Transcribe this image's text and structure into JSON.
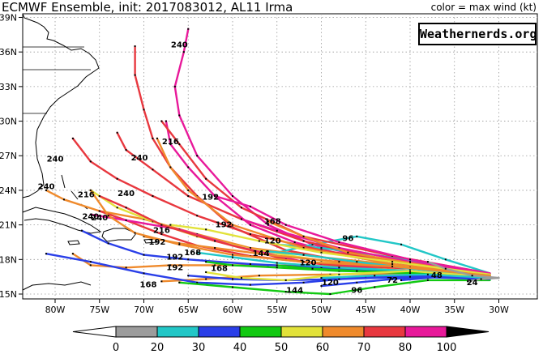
{
  "title": "ECMWF Ensemble, init: 2017083012, AL11 Irma",
  "legend_label": "color = max wind (kt)",
  "brand": "Weathernerds.org",
  "x_ticks": [
    {
      "label": "80W",
      "lon": -80
    },
    {
      "label": "75W",
      "lon": -75
    },
    {
      "label": "70W",
      "lon": -70
    },
    {
      "label": "65W",
      "lon": -65
    },
    {
      "label": "60W",
      "lon": -60
    },
    {
      "label": "55W",
      "lon": -55
    },
    {
      "label": "50W",
      "lon": -50
    },
    {
      "label": "45W",
      "lon": -45
    },
    {
      "label": "40W",
      "lon": -40
    },
    {
      "label": "35W",
      "lon": -35
    },
    {
      "label": "30W",
      "lon": -30
    }
  ],
  "y_ticks": [
    {
      "label": "15N",
      "lat": 15
    },
    {
      "label": "18N",
      "lat": 18
    },
    {
      "label": "21N",
      "lat": 21
    },
    {
      "label": "24N",
      "lat": 24
    },
    {
      "label": "27N",
      "lat": 27
    },
    {
      "label": "30N",
      "lat": 30
    },
    {
      "label": "33N",
      "lat": 33
    },
    {
      "label": "36N",
      "lat": 36
    },
    {
      "label": "39N",
      "lat": 39
    }
  ],
  "colorbar": {
    "labels": [
      "0",
      "20",
      "30",
      "40",
      "50",
      "60",
      "70",
      "80",
      "100"
    ],
    "colors": [
      "#9c9c9c",
      "#22c7c7",
      "#2a3fe8",
      "#12c912",
      "#e2e23a",
      "#ef8a2c",
      "#e8383f",
      "#e8199a"
    ]
  },
  "tracks": [
    {
      "color": "#e8199a",
      "points": [
        [
          -31,
          16.5
        ],
        [
          -36,
          17
        ],
        [
          -42,
          17.6
        ],
        [
          -48,
          18.5
        ],
        [
          -53,
          19.5
        ],
        [
          -58,
          21
        ],
        [
          -62,
          23.5
        ],
        [
          -65,
          26
        ],
        [
          -67,
          28
        ],
        [
          -67.5,
          30
        ]
      ],
      "label": "",
      "label_at": null
    },
    {
      "color": "#e8199a",
      "points": [
        [
          -31,
          16.6
        ],
        [
          -38,
          17.3
        ],
        [
          -45,
          18.2
        ],
        [
          -51,
          19.3
        ],
        [
          -56,
          21
        ],
        [
          -60,
          23.5
        ],
        [
          -64,
          27
        ],
        [
          -66,
          30.5
        ],
        [
          -66.5,
          33
        ],
        [
          -65.5,
          36
        ],
        [
          -65,
          38
        ]
      ],
      "label": "240",
      "label_at": [
        -66,
        36.6
      ]
    },
    {
      "color": "#e8383f",
      "points": [
        [
          -31,
          16.7
        ],
        [
          -39,
          17.2
        ],
        [
          -47,
          17.8
        ],
        [
          -54,
          18.8
        ],
        [
          -60,
          20.8
        ],
        [
          -64,
          23.5
        ],
        [
          -67,
          26
        ],
        [
          -69,
          28.5
        ],
        [
          -70,
          31
        ],
        [
          -71,
          34
        ],
        [
          -71,
          36.5
        ]
      ],
      "label": "",
      "label_at": null
    },
    {
      "color": "#ef8a2c",
      "points": [
        [
          -31,
          16.4
        ],
        [
          -40,
          17
        ],
        [
          -48,
          17.4
        ],
        [
          -56,
          17.5
        ],
        [
          -62,
          17.5
        ],
        [
          -67,
          17.5
        ],
        [
          -72,
          17.3
        ],
        [
          -76,
          17.5
        ],
        [
          -78,
          18.5
        ]
      ],
      "label": "",
      "label_at": null
    },
    {
      "color": "#ef8a2c",
      "points": [
        [
          -31,
          16.5
        ],
        [
          -40,
          16.8
        ],
        [
          -49,
          16.7
        ],
        [
          -57,
          16.6
        ],
        [
          -63,
          16.3
        ],
        [
          -68,
          16.1
        ]
      ],
      "label": "168",
      "label_at": [
        -69.5,
        15.8
      ]
    },
    {
      "color": "#2a3fe8",
      "points": [
        [
          -31,
          16.3
        ],
        [
          -38,
          16.6
        ],
        [
          -45,
          16.5
        ],
        [
          -52,
          16
        ],
        [
          -58,
          15.8
        ],
        [
          -64,
          16
        ],
        [
          -70,
          16.8
        ],
        [
          -76,
          17.8
        ],
        [
          -81,
          18.5
        ]
      ],
      "label": "",
      "label_at": null
    },
    {
      "color": "#12c912",
      "points": [
        [
          -31,
          16.2
        ],
        [
          -38,
          16.2
        ],
        [
          -44,
          15.6
        ],
        [
          -49,
          15
        ],
        [
          -54,
          15.2
        ],
        [
          -60,
          15.6
        ],
        [
          -66,
          16
        ]
      ],
      "label": "144",
      "label_at": [
        -53,
        15.3
      ]
    },
    {
      "color": "#22c7c7",
      "points": [
        [
          -31,
          16.8
        ],
        [
          -36,
          18
        ],
        [
          -41,
          19.3
        ],
        [
          -46,
          20
        ],
        [
          -51,
          19.3
        ],
        [
          -55,
          18.6
        ]
      ],
      "label": "96",
      "label_at": [
        -47,
        19.8
      ]
    },
    {
      "color": "#22c7c7",
      "points": [
        [
          -31,
          16.7
        ],
        [
          -37,
          17.6
        ],
        [
          -44,
          18.4
        ],
        [
          -50,
          19
        ],
        [
          -55,
          19.3
        ]
      ],
      "label": "120",
      "label_at": [
        -55.5,
        19.6
      ]
    },
    {
      "color": "#2a3fe8",
      "points": [
        [
          -31,
          16.4
        ],
        [
          -37,
          16.6
        ],
        [
          -42,
          16.3
        ],
        [
          -46,
          16
        ],
        [
          -50,
          15.7
        ]
      ],
      "label": "96",
      "label_at": [
        -46,
        15.3
      ]
    },
    {
      "color": "#2a3fe8",
      "points": [
        [
          -31,
          16.5
        ],
        [
          -35,
          16.6
        ],
        [
          -38,
          16.4
        ],
        [
          -41,
          16.2
        ]
      ],
      "label": "72",
      "label_at": [
        -42,
        16.2
      ]
    },
    {
      "color": "#ef8a2c",
      "points": [
        [
          -31,
          16.6
        ],
        [
          -40,
          17.4
        ],
        [
          -50,
          18.2
        ],
        [
          -58,
          19
        ],
        [
          -64,
          20.2
        ],
        [
          -70,
          21.5
        ],
        [
          -75,
          22.2
        ],
        [
          -79,
          23.2
        ],
        [
          -81,
          24
        ]
      ],
      "label": "240",
      "label_at": [
        -81,
        24.3
      ]
    },
    {
      "color": "#e8383f",
      "points": [
        [
          -31,
          16.7
        ],
        [
          -40,
          17.6
        ],
        [
          -50,
          18.8
        ],
        [
          -58,
          20.2
        ],
        [
          -64,
          21.8
        ],
        [
          -69,
          23.5
        ],
        [
          -73,
          25
        ],
        [
          -76,
          26.5
        ],
        [
          -78,
          28.5
        ]
      ],
      "label": "240",
      "label_at": [
        -80,
        26.7
      ]
    },
    {
      "color": "#e8383f",
      "points": [
        [
          -31,
          16.6
        ],
        [
          -42,
          17.8
        ],
        [
          -52,
          19.6
        ],
        [
          -59,
          21.5
        ],
        [
          -65,
          23.5
        ],
        [
          -69,
          25.8
        ],
        [
          -72,
          27.5
        ],
        [
          -73,
          29
        ]
      ],
      "label": "240",
      "label_at": [
        -70.5,
        26.8
      ]
    },
    {
      "color": "#ef8a2c",
      "points": [
        [
          -31,
          16.6
        ],
        [
          -42,
          17.6
        ],
        [
          -52,
          19
        ],
        [
          -60,
          21
        ],
        [
          -65,
          24
        ],
        [
          -67,
          26
        ],
        [
          -68.5,
          28.5
        ]
      ],
      "label": "216",
      "label_at": [
        -67,
        28.2
      ]
    },
    {
      "color": "#e8383f",
      "points": [
        [
          -31,
          16.8
        ],
        [
          -42,
          18.3
        ],
        [
          -52,
          20
        ],
        [
          -59,
          22.5
        ],
        [
          -63,
          25
        ],
        [
          -66,
          28
        ],
        [
          -68,
          30
        ]
      ],
      "label": "",
      "label_at": null
    },
    {
      "color": "#e8199a",
      "points": [
        [
          -31,
          16.8
        ],
        [
          -40,
          18
        ],
        [
          -48,
          19.5
        ],
        [
          -54,
          21
        ],
        [
          -58,
          22.6
        ],
        [
          -62,
          23.5
        ]
      ],
      "label": "192",
      "label_at": [
        -62.5,
        23.4
      ]
    },
    {
      "color": "#e8199a",
      "points": [
        [
          -31,
          16.7
        ],
        [
          -40,
          17.8
        ],
        [
          -48,
          19
        ],
        [
          -55,
          20.5
        ],
        [
          -59,
          21.5
        ]
      ],
      "label": "192",
      "label_at": [
        -61,
        21
      ]
    },
    {
      "color": "#ef8a2c",
      "points": [
        [
          -31,
          16.6
        ],
        [
          -40,
          17.7
        ],
        [
          -47,
          18.6
        ],
        [
          -52,
          20
        ],
        [
          -56,
          21.3
        ]
      ],
      "label": "168",
      "label_at": [
        -55.5,
        21.3
      ]
    },
    {
      "color": "#e2e23a",
      "points": [
        [
          -31,
          16.5
        ],
        [
          -40,
          17.3
        ],
        [
          -50,
          17.9
        ],
        [
          -58,
          18.9
        ],
        [
          -64,
          20
        ],
        [
          -69,
          21.3
        ],
        [
          -73,
          22.5
        ],
        [
          -76,
          24
        ]
      ],
      "label": "216",
      "label_at": [
        -76.5,
        23.6
      ]
    },
    {
      "color": "#e8383f",
      "points": [
        [
          -31,
          16.6
        ],
        [
          -40,
          17.2
        ],
        [
          -50,
          17.6
        ],
        [
          -58,
          18.3
        ],
        [
          -64,
          19.2
        ],
        [
          -68,
          20.2
        ],
        [
          -72,
          21.4
        ],
        [
          -75,
          22.2
        ]
      ],
      "label": "240",
      "label_at": [
        -76,
        21.7
      ]
    },
    {
      "color": "#e8199a",
      "points": [
        [
          -31,
          16.5
        ],
        [
          -42,
          17
        ],
        [
          -52,
          17.8
        ],
        [
          -60,
          19.2
        ],
        [
          -66,
          20.6
        ],
        [
          -72,
          21.4
        ],
        [
          -76,
          21.9
        ]
      ],
      "label": "240",
      "label_at": [
        -75,
        21.6
      ]
    },
    {
      "color": "#e8383f",
      "points": [
        [
          -31,
          16.6
        ],
        [
          -44,
          17.1
        ],
        [
          -54,
          18
        ],
        [
          -62,
          19.6
        ],
        [
          -68,
          21
        ],
        [
          -72,
          22.5
        ],
        [
          -75,
          23.5
        ]
      ],
      "label": "240",
      "label_at": [
        -72,
        23.7
      ]
    },
    {
      "color": "#2a3fe8",
      "points": [
        [
          -31,
          16.4
        ],
        [
          -40,
          16.9
        ],
        [
          -50,
          17.3
        ],
        [
          -58,
          17.6
        ],
        [
          -65,
          18
        ],
        [
          -70,
          18.4
        ],
        [
          -74,
          19.4
        ],
        [
          -77,
          20.5
        ]
      ],
      "label": "",
      "label_at": null
    },
    {
      "color": "#22c7c7",
      "points": [
        [
          -31,
          16.5
        ],
        [
          -40,
          17
        ],
        [
          -48,
          17.3
        ],
        [
          -55,
          17.7
        ],
        [
          -60,
          18.2
        ],
        [
          -64,
          18.6
        ]
      ],
      "label": "168",
      "label_at": [
        -64.5,
        18.6
      ]
    },
    {
      "color": "#12c912",
      "points": [
        [
          -31,
          16.4
        ],
        [
          -40,
          16.9
        ],
        [
          -48,
          17
        ],
        [
          -55,
          17.3
        ],
        [
          -60,
          17.5
        ],
        [
          -63,
          17.8
        ]
      ],
      "label": "192",
      "label_at": [
        -66.5,
        18.2
      ]
    },
    {
      "color": "#ef8a2c",
      "points": [
        [
          -31,
          16.6
        ],
        [
          -40,
          17.3
        ],
        [
          -48,
          17.8
        ],
        [
          -56,
          18.4
        ],
        [
          -62,
          19
        ],
        [
          -66,
          19.4
        ],
        [
          -70,
          20
        ]
      ],
      "label": "192",
      "label_at": [
        -68.5,
        19.5
      ]
    },
    {
      "color": "#e2e23a",
      "points": [
        [
          -31,
          16.7
        ],
        [
          -42,
          17.8
        ],
        [
          -50,
          18.6
        ],
        [
          -57,
          19.6
        ],
        [
          -63,
          20.6
        ],
        [
          -67,
          21
        ]
      ],
      "label": "216",
      "label_at": [
        -68,
        20.5
      ]
    },
    {
      "color": "#2a3fe8",
      "points": [
        [
          -31,
          16.3
        ],
        [
          -40,
          16.5
        ],
        [
          -48,
          16.3
        ],
        [
          -54,
          16.2
        ],
        [
          -60,
          16.3
        ],
        [
          -65,
          16.6
        ]
      ],
      "label": "192",
      "label_at": [
        -66.5,
        17.3
      ]
    },
    {
      "color": "#12c912",
      "points": [
        [
          -31,
          16.5
        ],
        [
          -40,
          16.8
        ],
        [
          -46,
          17
        ],
        [
          -51,
          17.2
        ],
        [
          -55,
          17.5
        ]
      ],
      "label": "120",
      "label_at": [
        -51.5,
        17.7
      ]
    },
    {
      "color": "#22c7c7",
      "points": [
        [
          -31,
          16.6
        ],
        [
          -40,
          17.2
        ],
        [
          -46,
          17.8
        ],
        [
          -52,
          18.4
        ],
        [
          -56,
          18.7
        ]
      ],
      "label": "144",
      "label_at": [
        -56.8,
        18.5
      ]
    },
    {
      "color": "#e2e23a",
      "points": [
        [
          -31,
          16.5
        ],
        [
          -40,
          17
        ],
        [
          -48,
          16.7
        ],
        [
          -54,
          16.2
        ],
        [
          -59,
          16.4
        ],
        [
          -63,
          16.9
        ]
      ],
      "label": "168",
      "label_at": [
        -61.5,
        17.2
      ]
    },
    {
      "color": "#ef8a2c",
      "points": [
        [
          -31,
          16.6
        ],
        [
          -42,
          17.4
        ],
        [
          -52,
          17.8
        ],
        [
          -60,
          18.4
        ],
        [
          -66,
          19.3
        ],
        [
          -71,
          20.3
        ],
        [
          -74,
          21.8
        ],
        [
          -76,
          24
        ]
      ],
      "label": "",
      "label_at": null
    },
    {
      "color": "#22c7c7",
      "points": [
        [
          -31,
          16.4
        ],
        [
          -38,
          16.7
        ],
        [
          -44,
          16.6
        ],
        [
          -50,
          16.4
        ]
      ],
      "label": "120",
      "label_at": [
        -49,
        16
      ]
    },
    {
      "color": "#9c9c9c",
      "points": [
        [
          -30,
          16.4
        ],
        [
          -33,
          16.6
        ],
        [
          -36,
          17.2
        ],
        [
          -38,
          17.8
        ]
      ],
      "label": "48",
      "label_at": [
        -37,
        16.6
      ]
    },
    {
      "color": "#9c9c9c",
      "points": [
        [
          -30,
          16.4
        ],
        [
          -32,
          16.3
        ],
        [
          -33.5,
          16.1
        ]
      ],
      "label": "24",
      "label_at": [
        -33,
        16
      ]
    }
  ]
}
